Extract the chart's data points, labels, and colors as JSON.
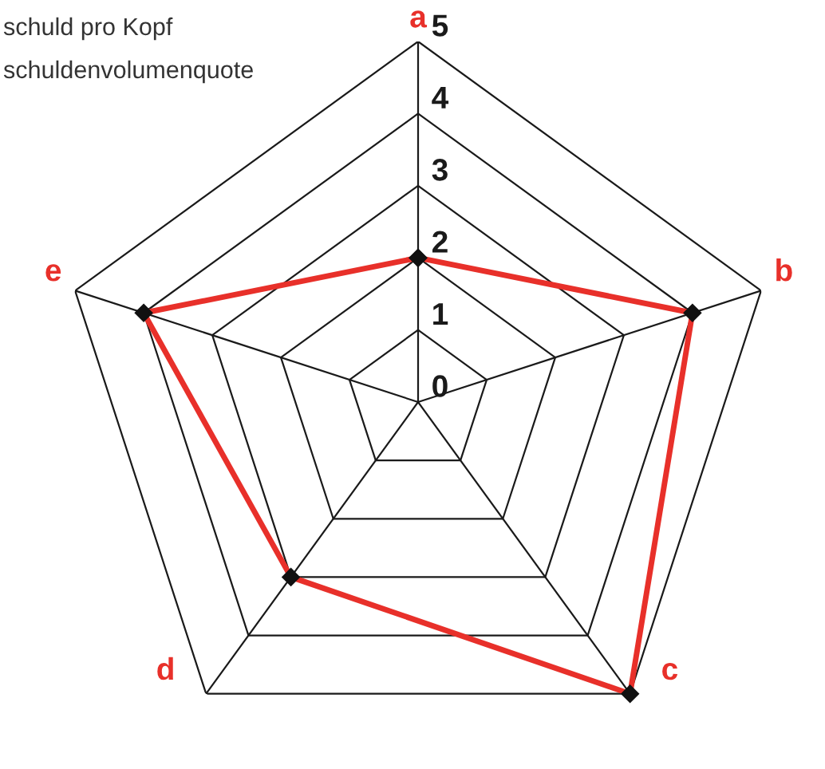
{
  "chart_data": {
    "type": "radar",
    "categories": [
      "a",
      "b",
      "c",
      "d",
      "e"
    ],
    "series": [
      {
        "color": "#e8302a",
        "values": [
          2,
          4,
          5,
          3,
          4
        ]
      }
    ],
    "ylim": [
      0,
      5
    ],
    "yticks": [
      0,
      1,
      2,
      3,
      4,
      5
    ],
    "grid": true,
    "marker": "diamond",
    "line_style": "solid",
    "annotations": [
      "schuld pro Kopf",
      "schuldenvolumenquote"
    ]
  }
}
